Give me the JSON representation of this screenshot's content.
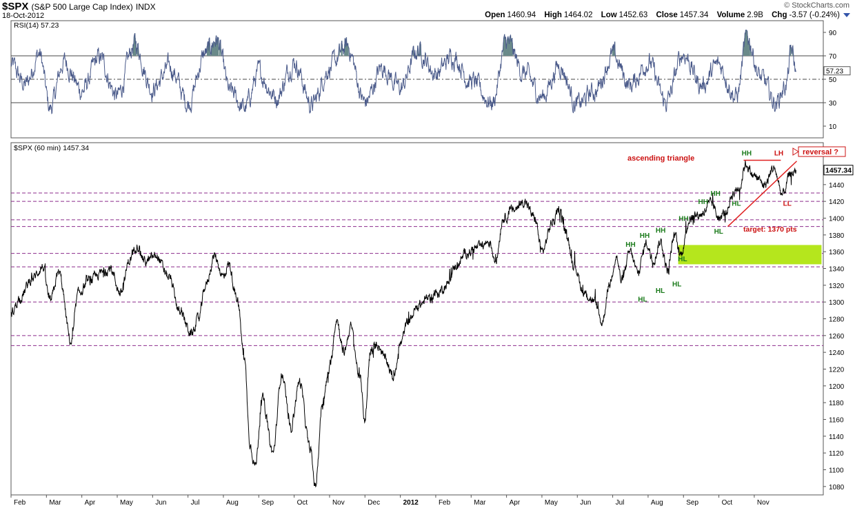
{
  "header": {
    "symbol": "$SPX",
    "description": "(S&P 500 Large Cap Index)",
    "exchange": "INDX",
    "date": "18-Oct-2012",
    "brand": "© StockCharts.com",
    "quote": {
      "open_label": "Open",
      "open": "1460.94",
      "high_label": "High",
      "high": "1464.02",
      "low_label": "Low",
      "low": "1452.63",
      "close_label": "Close",
      "close": "1457.34",
      "volume_label": "Volume",
      "volume": "2.9B",
      "chg_label": "Chg",
      "chg": "-3.57 (-0.24%)"
    }
  },
  "colors": {
    "price_line": "#000000",
    "rsi_line": "#4a5a8a",
    "hline": "#8b2a8b",
    "target_zone": "#b5e61d",
    "green_label": "#1a7a1a",
    "red_label": "#cc1111"
  },
  "chart_data": [
    {
      "type": "line",
      "title": "RSI(14) 57.23",
      "ylim": [
        0,
        100
      ],
      "yticks": [
        10,
        30,
        50,
        70,
        90
      ],
      "reference_lines": [
        30,
        50,
        70
      ],
      "last_value_label": "57.23",
      "last_value": 57.23
    },
    {
      "type": "line",
      "title": "$SPX (60 min) 1457.34",
      "last_value_label": "1457.34",
      "last_value": 1457.34,
      "ylim": [
        1070,
        1490
      ],
      "yticks": [
        1080,
        1100,
        1120,
        1140,
        1160,
        1180,
        1200,
        1220,
        1240,
        1260,
        1280,
        1300,
        1320,
        1340,
        1360,
        1380,
        1400,
        1420,
        1440
      ],
      "x_labels": [
        "Feb",
        "Mar",
        "Apr",
        "May",
        "Jun",
        "Jul",
        "Aug",
        "Sep",
        "Oct",
        "Nov",
        "Dec",
        "2012",
        "Feb",
        "Mar",
        "Apr",
        "May",
        "Jun",
        "Jul",
        "Aug",
        "Sep",
        "Oct",
        "Nov"
      ],
      "x_label_month_index": [
        1,
        2,
        3,
        4,
        5,
        6,
        7,
        8,
        9,
        10,
        11,
        12,
        13,
        14,
        15,
        16,
        17,
        18,
        19,
        20,
        21,
        22
      ],
      "month_start": "2011-01",
      "price_anchors": [
        {
          "m": 0.0,
          "v": 1286
        },
        {
          "m": 0.25,
          "v": 1305
        },
        {
          "m": 0.6,
          "v": 1328
        },
        {
          "m": 0.9,
          "v": 1342
        },
        {
          "m": 1.1,
          "v": 1300
        },
        {
          "m": 1.35,
          "v": 1335
        },
        {
          "m": 1.7,
          "v": 1252
        },
        {
          "m": 1.9,
          "v": 1310
        },
        {
          "m": 2.2,
          "v": 1325
        },
        {
          "m": 2.6,
          "v": 1335
        },
        {
          "m": 2.8,
          "v": 1340
        },
        {
          "m": 3.1,
          "v": 1310
        },
        {
          "m": 3.35,
          "v": 1350
        },
        {
          "m": 3.55,
          "v": 1368
        },
        {
          "m": 3.8,
          "v": 1348
        },
        {
          "m": 4.1,
          "v": 1355
        },
        {
          "m": 4.45,
          "v": 1330
        },
        {
          "m": 4.8,
          "v": 1285
        },
        {
          "m": 5.1,
          "v": 1262
        },
        {
          "m": 5.3,
          "v": 1280
        },
        {
          "m": 5.5,
          "v": 1320
        },
        {
          "m": 5.75,
          "v": 1355
        },
        {
          "m": 6.0,
          "v": 1330
        },
        {
          "m": 6.15,
          "v": 1345
        },
        {
          "m": 6.4,
          "v": 1300
        },
        {
          "m": 6.6,
          "v": 1230
        },
        {
          "m": 6.75,
          "v": 1130
        },
        {
          "m": 6.9,
          "v": 1105
        },
        {
          "m": 7.1,
          "v": 1185
        },
        {
          "m": 7.4,
          "v": 1120
        },
        {
          "m": 7.65,
          "v": 1215
        },
        {
          "m": 7.9,
          "v": 1150
        },
        {
          "m": 8.15,
          "v": 1205
        },
        {
          "m": 8.45,
          "v": 1125
        },
        {
          "m": 8.6,
          "v": 1080
        },
        {
          "m": 8.8,
          "v": 1180
        },
        {
          "m": 9.0,
          "v": 1220
        },
        {
          "m": 9.2,
          "v": 1280
        },
        {
          "m": 9.4,
          "v": 1240
        },
        {
          "m": 9.6,
          "v": 1270
        },
        {
          "m": 9.85,
          "v": 1210
        },
        {
          "m": 10.0,
          "v": 1160
        },
        {
          "m": 10.15,
          "v": 1240
        },
        {
          "m": 10.35,
          "v": 1250
        },
        {
          "m": 10.6,
          "v": 1230
        },
        {
          "m": 10.8,
          "v": 1210
        },
        {
          "m": 11.0,
          "v": 1250
        },
        {
          "m": 11.2,
          "v": 1275
        },
        {
          "m": 11.5,
          "v": 1295
        },
        {
          "m": 11.8,
          "v": 1305
        },
        {
          "m": 12.05,
          "v": 1310
        },
        {
          "m": 12.3,
          "v": 1320
        },
        {
          "m": 12.6,
          "v": 1345
        },
        {
          "m": 12.9,
          "v": 1360
        },
        {
          "m": 13.2,
          "v": 1365
        },
        {
          "m": 13.5,
          "v": 1372
        },
        {
          "m": 13.7,
          "v": 1350
        },
        {
          "m": 13.9,
          "v": 1400
        },
        {
          "m": 14.2,
          "v": 1410
        },
        {
          "m": 14.5,
          "v": 1420
        },
        {
          "m": 14.8,
          "v": 1400
        },
        {
          "m": 15.0,
          "v": 1360
        },
        {
          "m": 15.3,
          "v": 1395
        },
        {
          "m": 15.5,
          "v": 1410
        },
        {
          "m": 15.7,
          "v": 1380
        },
        {
          "m": 15.9,
          "v": 1345
        },
        {
          "m": 16.2,
          "v": 1310
        },
        {
          "m": 16.5,
          "v": 1300
        },
        {
          "m": 16.7,
          "v": 1275
        },
        {
          "m": 16.9,
          "v": 1320
        },
        {
          "m": 17.1,
          "v": 1355
        },
        {
          "m": 17.25,
          "v": 1325
        },
        {
          "m": 17.5,
          "v": 1360
        },
        {
          "m": 17.7,
          "v": 1335
        },
        {
          "m": 17.95,
          "v": 1370
        },
        {
          "m": 18.15,
          "v": 1350
        },
        {
          "m": 18.35,
          "v": 1372
        },
        {
          "m": 18.55,
          "v": 1338
        },
        {
          "m": 18.75,
          "v": 1380
        },
        {
          "m": 18.9,
          "v": 1356
        },
        {
          "m": 19.2,
          "v": 1400
        },
        {
          "m": 19.5,
          "v": 1405
        },
        {
          "m": 19.8,
          "v": 1418
        },
        {
          "m": 20.0,
          "v": 1400
        },
        {
          "m": 20.2,
          "v": 1407
        },
        {
          "m": 20.4,
          "v": 1430
        },
        {
          "m": 20.6,
          "v": 1438
        },
        {
          "m": 20.75,
          "v": 1465
        },
        {
          "m": 21.0,
          "v": 1450
        },
        {
          "m": 21.3,
          "v": 1440
        },
        {
          "m": 21.55,
          "v": 1460
        },
        {
          "m": 21.8,
          "v": 1428
        },
        {
          "m": 22.0,
          "v": 1450
        },
        {
          "m": 22.18,
          "v": 1457
        }
      ],
      "rsi_anchors": [
        {
          "m": 0.0,
          "v": 62
        },
        {
          "m": 0.4,
          "v": 45
        },
        {
          "m": 0.8,
          "v": 72
        },
        {
          "m": 1.1,
          "v": 25
        },
        {
          "m": 1.5,
          "v": 65
        },
        {
          "m": 2.0,
          "v": 40
        },
        {
          "m": 2.5,
          "v": 68
        },
        {
          "m": 3.0,
          "v": 35
        },
        {
          "m": 3.5,
          "v": 80
        },
        {
          "m": 4.0,
          "v": 42
        },
        {
          "m": 4.5,
          "v": 60
        },
        {
          "m": 5.0,
          "v": 30
        },
        {
          "m": 5.5,
          "v": 72
        },
        {
          "m": 5.8,
          "v": 84
        },
        {
          "m": 6.2,
          "v": 38
        },
        {
          "m": 6.6,
          "v": 25
        },
        {
          "m": 7.0,
          "v": 55
        },
        {
          "m": 7.5,
          "v": 35
        },
        {
          "m": 8.0,
          "v": 65
        },
        {
          "m": 8.5,
          "v": 28
        },
        {
          "m": 9.0,
          "v": 60
        },
        {
          "m": 9.5,
          "v": 78
        },
        {
          "m": 10.0,
          "v": 30
        },
        {
          "m": 10.5,
          "v": 60
        },
        {
          "m": 11.0,
          "v": 42
        },
        {
          "m": 11.5,
          "v": 75
        },
        {
          "m": 12.0,
          "v": 55
        },
        {
          "m": 12.5,
          "v": 70
        },
        {
          "m": 13.0,
          "v": 48
        },
        {
          "m": 13.6,
          "v": 30
        },
        {
          "m": 14.0,
          "v": 82
        },
        {
          "m": 14.5,
          "v": 55
        },
        {
          "m": 15.0,
          "v": 35
        },
        {
          "m": 15.5,
          "v": 62
        },
        {
          "m": 16.0,
          "v": 28
        },
        {
          "m": 16.5,
          "v": 40
        },
        {
          "m": 17.0,
          "v": 70
        },
        {
          "m": 17.5,
          "v": 45
        },
        {
          "m": 18.0,
          "v": 65
        },
        {
          "m": 18.5,
          "v": 30
        },
        {
          "m": 19.0,
          "v": 72
        },
        {
          "m": 19.5,
          "v": 45
        },
        {
          "m": 20.0,
          "v": 62
        },
        {
          "m": 20.5,
          "v": 35
        },
        {
          "m": 20.8,
          "v": 86
        },
        {
          "m": 21.2,
          "v": 50
        },
        {
          "m": 21.6,
          "v": 30
        },
        {
          "m": 21.9,
          "v": 45
        },
        {
          "m": 22.05,
          "v": 74
        },
        {
          "m": 22.18,
          "v": 57
        }
      ],
      "horizontal_lines": [
        1430,
        1420,
        1398,
        1390,
        1358,
        1342,
        1300,
        1260,
        1248
      ],
      "target_zone": {
        "from_month": 18.85,
        "to_month": 22.9,
        "low": 1345,
        "high": 1368
      },
      "ascending_triangle": {
        "resistance": {
          "m1": 20.7,
          "m2": 21.75,
          "v": 1469
        },
        "support": {
          "m1": 20.25,
          "v1": 1390,
          "m2": 22.2,
          "v2": 1468
        }
      },
      "annotations": {
        "ascending_triangle": "ascending triangle",
        "reversal": "reversal ?",
        "target": "target: 1370 pts",
        "labels": [
          {
            "t": "HH",
            "c": "green",
            "m": 20.78,
            "v": 1478
          },
          {
            "t": "LH",
            "c": "red",
            "m": 21.7,
            "v": 1478
          },
          {
            "t": "HH",
            "c": "green",
            "m": 19.9,
            "v": 1430
          },
          {
            "t": "HH",
            "c": "green",
            "m": 19.55,
            "v": 1420
          },
          {
            "t": "HH",
            "c": "green",
            "m": 19.0,
            "v": 1400
          },
          {
            "t": "HH",
            "c": "green",
            "m": 18.35,
            "v": 1386
          },
          {
            "t": "HH",
            "c": "green",
            "m": 17.9,
            "v": 1380
          },
          {
            "t": "HH",
            "c": "green",
            "m": 17.5,
            "v": 1369
          },
          {
            "t": "HL",
            "c": "green",
            "m": 20.5,
            "v": 1418
          },
          {
            "t": "LL",
            "c": "red",
            "m": 21.95,
            "v": 1418
          },
          {
            "t": "HL",
            "c": "green",
            "m": 20.0,
            "v": 1385
          },
          {
            "t": "HL",
            "c": "green",
            "m": 18.98,
            "v": 1352
          },
          {
            "t": "HL",
            "c": "green",
            "m": 18.82,
            "v": 1322
          },
          {
            "t": "HL",
            "c": "green",
            "m": 18.35,
            "v": 1314
          },
          {
            "t": "HL",
            "c": "green",
            "m": 17.85,
            "v": 1304
          }
        ]
      }
    }
  ]
}
